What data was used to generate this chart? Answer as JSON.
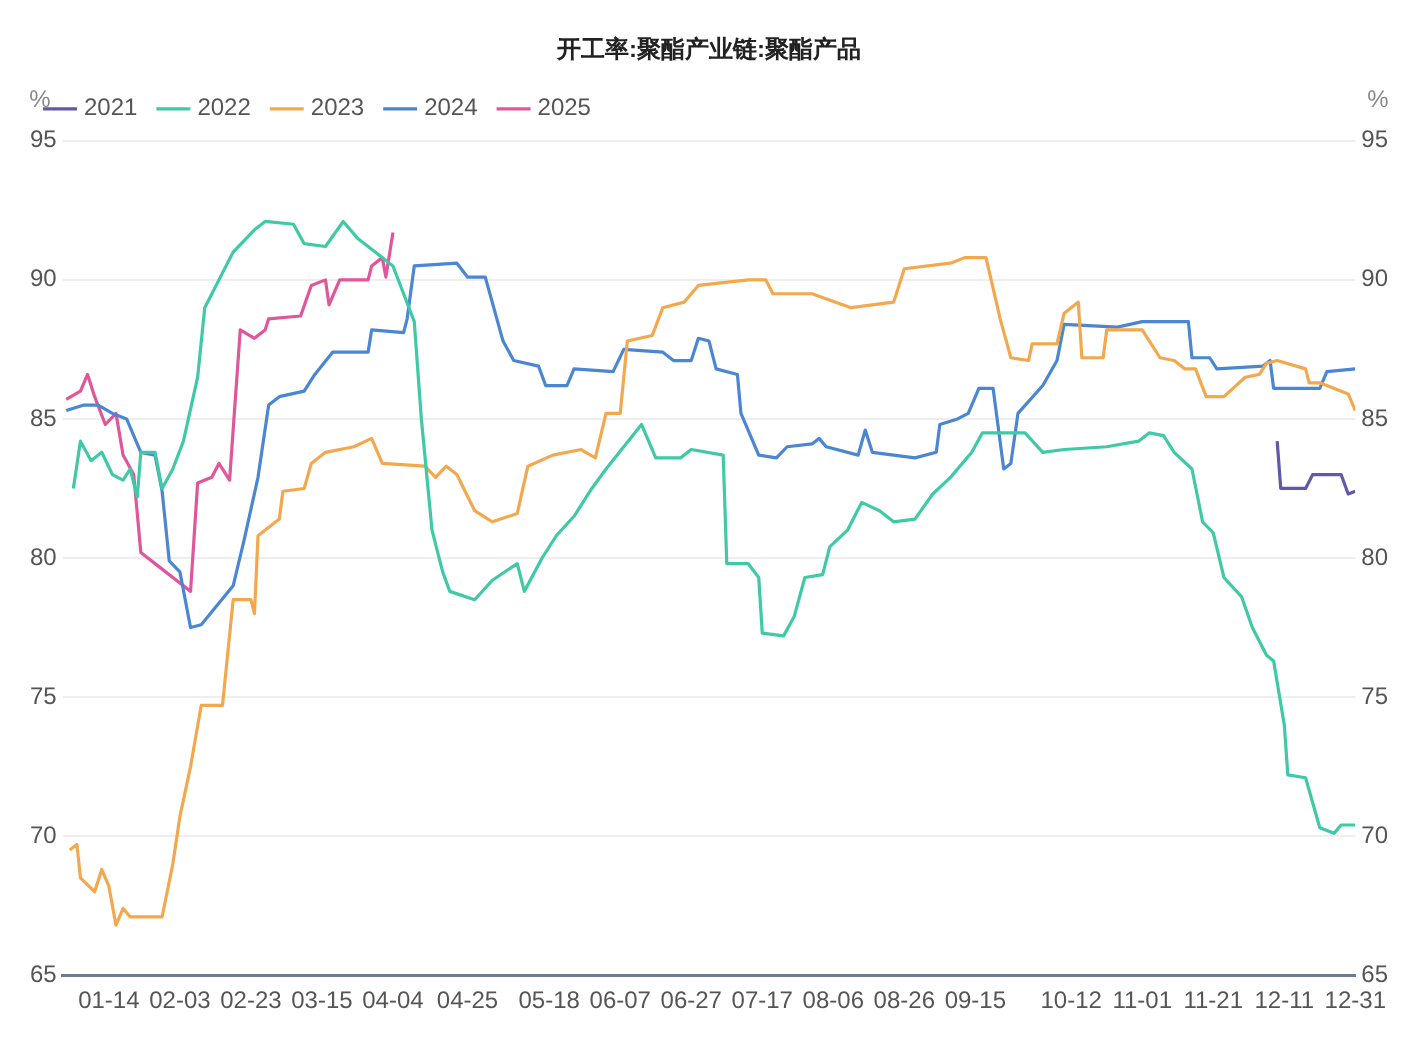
{
  "chart_data": {
    "type": "line",
    "title": "开工率:聚酯产业链:聚酯产品",
    "ylabel": "%",
    "y2label": "%",
    "legend": "top left",
    "grid": "y",
    "xlim": [
      "--01-01",
      "--12-31"
    ],
    "xticks": [
      {
        "value": "--01-14",
        "label": "01-14"
      },
      {
        "value": "--02-03",
        "label": "02-03"
      },
      {
        "value": "--02-23",
        "label": "02-23"
      },
      {
        "value": "--03-15",
        "label": "03-15"
      },
      {
        "value": "--04-04",
        "label": "04-04"
      },
      {
        "value": "--04-25",
        "label": "04-25"
      },
      {
        "value": "--05-18",
        "label": "05-18"
      },
      {
        "value": "--06-07",
        "label": "06-07"
      },
      {
        "value": "--06-27",
        "label": "06-27"
      },
      {
        "value": "--07-17",
        "label": "07-17"
      },
      {
        "value": "--08-06",
        "label": "08-06"
      },
      {
        "value": "--08-26",
        "label": "08-26"
      },
      {
        "value": "--09-15",
        "label": "09-15"
      },
      {
        "value": "--10-12",
        "label": "10-12"
      },
      {
        "value": "--11-01",
        "label": "11-01"
      },
      {
        "value": "--11-21",
        "label": "11-21"
      },
      {
        "value": "--12-11",
        "label": "12-11"
      },
      {
        "value": "--12-31",
        "label": "12-31"
      }
    ],
    "ylim": [
      65,
      95
    ],
    "yticks": [
      65,
      70,
      75,
      80,
      85,
      90,
      95
    ],
    "y2lim": [
      65,
      95
    ],
    "y2ticks": [
      65,
      70,
      75,
      80,
      85,
      90,
      95
    ],
    "series": [
      {
        "name": "2021",
        "color": "#5f5aa8",
        "x": [
          "--12-09",
          "--12-10",
          "--12-17",
          "--12-19",
          "--12-27",
          "--12-29",
          "--12-31"
        ],
        "values": [
          84.2,
          82.5,
          82.5,
          83.0,
          83.0,
          82.3,
          82.4
        ]
      },
      {
        "name": "2022",
        "color": "#3fc9a6",
        "x": [
          "--01-04",
          "--01-06",
          "--01-09",
          "--01-12",
          "--01-15",
          "--01-18",
          "--01-20",
          "--01-22",
          "--01-23",
          "--01-27",
          "--01-29",
          "--02-01",
          "--02-04",
          "--02-08",
          "--02-10",
          "--02-14",
          "--02-18",
          "--02-24",
          "--02-27",
          "--03-07",
          "--03-10",
          "--03-16",
          "--03-21",
          "--03-25",
          "--03-30",
          "--04-04",
          "--04-07",
          "--04-10",
          "--04-12",
          "--04-15",
          "--04-18",
          "--04-20",
          "--04-27",
          "--05-02",
          "--05-09",
          "--05-11",
          "--05-16",
          "--05-20",
          "--05-25",
          "--05-30",
          "--06-03",
          "--06-08",
          "--06-13",
          "--06-17",
          "--06-24",
          "--06-27",
          "--07-06",
          "--07-07",
          "--07-13",
          "--07-16",
          "--07-17",
          "--07-23",
          "--07-26",
          "--07-29",
          "--08-03",
          "--08-05",
          "--08-10",
          "--08-14",
          "--08-19",
          "--08-23",
          "--08-29",
          "--09-03",
          "--09-08",
          "--09-14",
          "--09-17",
          "--09-29",
          "--10-04",
          "--10-10",
          "--10-22",
          "--10-31",
          "--11-03",
          "--11-07",
          "--11-10",
          "--11-15",
          "--11-18",
          "--11-21",
          "--11-24",
          "--11-29",
          "--12-02",
          "--12-06",
          "--12-08",
          "--12-11",
          "--12-12",
          "--12-17",
          "--12-21",
          "--12-25",
          "--12-27",
          "--12-31"
        ],
        "values": [
          82.5,
          84.2,
          83.5,
          83.8,
          83.0,
          82.8,
          83.2,
          82.2,
          83.8,
          83.8,
          82.5,
          83.2,
          84.2,
          86.5,
          89.0,
          90.0,
          91.0,
          91.8,
          92.1,
          92.0,
          91.3,
          91.2,
          92.1,
          91.5,
          91.0,
          90.5,
          89.5,
          88.5,
          85.0,
          81.0,
          79.5,
          78.8,
          78.5,
          79.2,
          79.8,
          78.8,
          80.0,
          80.8,
          81.5,
          82.5,
          83.2,
          84.0,
          84.8,
          83.6,
          83.6,
          83.9,
          83.7,
          79.8,
          79.8,
          79.3,
          77.3,
          77.2,
          77.9,
          79.3,
          79.4,
          80.4,
          81.0,
          82.0,
          81.7,
          81.3,
          81.4,
          82.3,
          82.9,
          83.8,
          84.5,
          84.5,
          83.8,
          83.9,
          84.0,
          84.2,
          84.5,
          84.4,
          83.8,
          83.2,
          81.3,
          80.9,
          79.3,
          78.6,
          77.5,
          76.5,
          76.3,
          74.0,
          72.2,
          72.1,
          70.3,
          70.1,
          70.4,
          70.4
        ]
      },
      {
        "name": "2023",
        "color": "#f4a84e",
        "x": [
          "--01-03",
          "--01-05",
          "--01-06",
          "--01-10",
          "--01-12",
          "--01-14",
          "--01-16",
          "--01-18",
          "--01-20",
          "--01-29",
          "--02-01",
          "--02-03",
          "--02-06",
          "--02-09",
          "--02-15",
          "--02-18",
          "--02-23",
          "--02-24",
          "--02-25",
          "--03-03",
          "--03-04",
          "--03-10",
          "--03-12",
          "--03-16",
          "--03-24",
          "--03-29",
          "--04-01",
          "--04-13",
          "--04-16",
          "--04-19",
          "--04-22",
          "--04-27",
          "--05-02",
          "--05-09",
          "--05-12",
          "--05-19",
          "--05-27",
          "--05-31",
          "--06-03",
          "--06-07",
          "--06-09",
          "--06-16",
          "--06-19",
          "--06-25",
          "--06-29",
          "--07-13",
          "--07-18",
          "--07-20",
          "--07-31",
          "--08-11",
          "--08-23",
          "--08-26",
          "--09-08",
          "--09-12",
          "--09-18",
          "--09-22",
          "--09-25",
          "--09-30",
          "--10-01",
          "--10-08",
          "--10-10",
          "--10-14",
          "--10-15",
          "--10-21",
          "--10-22",
          "--11-01",
          "--11-06",
          "--11-10",
          "--11-13",
          "--11-16",
          "--11-19",
          "--11-24",
          "--11-30",
          "--12-04",
          "--12-06",
          "--12-09",
          "--12-17",
          "--12-18",
          "--12-21",
          "--12-29",
          "--12-31"
        ],
        "values": [
          69.5,
          69.7,
          68.5,
          68.0,
          68.8,
          68.2,
          66.8,
          67.4,
          67.1,
          67.1,
          69.0,
          70.7,
          72.5,
          74.7,
          74.7,
          78.5,
          78.5,
          78.0,
          80.8,
          81.4,
          82.4,
          82.5,
          83.4,
          83.8,
          84.0,
          84.3,
          83.4,
          83.3,
          82.9,
          83.3,
          83.0,
          81.7,
          81.3,
          81.6,
          83.3,
          83.7,
          83.9,
          83.6,
          85.2,
          85.2,
          87.8,
          88.0,
          89.0,
          89.2,
          89.8,
          90.0,
          90.0,
          89.5,
          89.5,
          89.0,
          89.2,
          90.4,
          90.6,
          90.8,
          90.8,
          88.6,
          87.2,
          87.1,
          87.7,
          87.7,
          88.8,
          89.2,
          87.2,
          87.2,
          88.2,
          88.2,
          87.2,
          87.1,
          86.8,
          86.8,
          85.8,
          85.8,
          86.5,
          86.6,
          87.0,
          87.1,
          86.8,
          86.3,
          86.3,
          85.9,
          85.3
        ]
      },
      {
        "name": "2024",
        "color": "#4a86d2",
        "x": [
          "--01-02",
          "--01-07",
          "--01-11",
          "--01-15",
          "--01-19",
          "--01-23",
          "--01-27",
          "--01-29",
          "--01-31",
          "--02-03",
          "--02-06",
          "--02-09",
          "--02-18",
          "--02-21",
          "--02-25",
          "--02-28",
          "--03-03",
          "--03-10",
          "--03-13",
          "--03-18",
          "--03-28",
          "--03-29",
          "--04-07",
          "--04-08",
          "--04-10",
          "--04-22",
          "--04-25",
          "--04-30",
          "--05-05",
          "--05-08",
          "--05-15",
          "--05-17",
          "--05-23",
          "--05-25",
          "--06-05",
          "--06-08",
          "--06-19",
          "--06-22",
          "--06-27",
          "--06-29",
          "--07-02",
          "--07-04",
          "--07-10",
          "--07-11",
          "--07-16",
          "--07-21",
          "--07-24",
          "--07-31",
          "--08-02",
          "--08-04",
          "--08-13",
          "--08-15",
          "--08-17",
          "--08-29",
          "--09-04",
          "--09-05",
          "--09-10",
          "--09-13",
          "--09-16",
          "--09-20",
          "--09-23",
          "--09-25",
          "--09-27",
          "--10-04",
          "--10-08",
          "--10-10",
          "--10-25",
          "--11-01",
          "--11-14",
          "--11-15",
          "--11-20",
          "--11-22",
          "--12-05",
          "--12-07",
          "--12-08",
          "--12-21",
          "--12-23",
          "--12-31"
        ],
        "values": [
          85.3,
          85.5,
          85.5,
          85.2,
          85.0,
          83.8,
          83.7,
          82.4,
          79.9,
          79.5,
          77.5,
          77.6,
          79.0,
          80.6,
          82.9,
          85.5,
          85.8,
          86.0,
          86.6,
          87.4,
          87.4,
          88.2,
          88.1,
          88.6,
          90.5,
          90.6,
          90.1,
          90.1,
          87.8,
          87.1,
          86.9,
          86.2,
          86.2,
          86.8,
          86.7,
          87.5,
          87.4,
          87.1,
          87.1,
          87.9,
          87.8,
          86.8,
          86.6,
          85.2,
          83.7,
          83.6,
          84.0,
          84.1,
          84.3,
          84.0,
          83.7,
          84.6,
          83.8,
          83.6,
          83.8,
          84.8,
          85.0,
          85.2,
          86.1,
          86.1,
          83.2,
          83.4,
          85.2,
          86.2,
          87.1,
          88.4,
          88.3,
          88.5,
          88.5,
          87.2,
          87.2,
          86.8,
          86.9,
          87.1,
          86.1,
          86.1,
          86.7,
          86.8
        ]
      },
      {
        "name": "2025",
        "color": "#e0569a",
        "x": [
          "--01-02",
          "--01-06",
          "--01-08",
          "--01-10",
          "--01-13",
          "--01-16",
          "--01-18",
          "--01-21",
          "--01-23",
          "--01-29",
          "--02-02",
          "--02-06",
          "--02-08",
          "--02-12",
          "--02-14",
          "--02-17",
          "--02-20",
          "--02-24",
          "--02-27",
          "--02-28",
          "--03-09",
          "--03-12",
          "--03-16",
          "--03-17",
          "--03-20",
          "--03-28",
          "--03-29",
          "--04-01",
          "--04-02",
          "--04-04"
        ],
        "values": [
          85.7,
          86.0,
          86.6,
          85.8,
          84.8,
          85.2,
          83.7,
          83.0,
          80.2,
          79.6,
          79.2,
          78.8,
          82.7,
          82.9,
          83.4,
          82.8,
          88.2,
          87.9,
          88.2,
          88.6,
          88.7,
          89.8,
          90.0,
          89.1,
          90.0,
          90.0,
          90.5,
          90.8,
          90.1,
          91.7
        ]
      }
    ]
  }
}
